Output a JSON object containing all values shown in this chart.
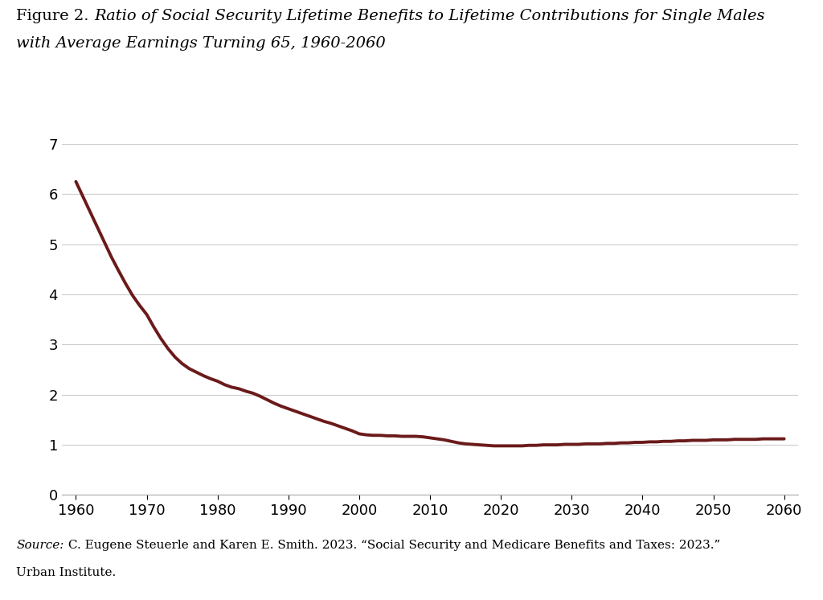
{
  "title_prefix": "Figure 2. ",
  "title_italic1": "Ratio of Social Security Lifetime Benefits to Lifetime Contributions for Single Males",
  "title_italic2": "with Average Earnings Turning 65, 1960-2060",
  "source_label": "Source:",
  "source_rest": " C. Eugene Steuerle and Karen E. Smith. 2023. “Social Security and Medicare Benefits and Taxes: 2023.”",
  "source_line2": "Urban Institute.",
  "line_color": "#6B1A1A",
  "line_width": 2.8,
  "background_color": "#FFFFFF",
  "years": [
    1960,
    1961,
    1962,
    1963,
    1964,
    1965,
    1966,
    1967,
    1968,
    1969,
    1970,
    1971,
    1972,
    1973,
    1974,
    1975,
    1976,
    1977,
    1978,
    1979,
    1980,
    1981,
    1982,
    1983,
    1984,
    1985,
    1986,
    1987,
    1988,
    1989,
    1990,
    1991,
    1992,
    1993,
    1994,
    1995,
    1996,
    1997,
    1998,
    1999,
    2000,
    2001,
    2002,
    2003,
    2004,
    2005,
    2006,
    2007,
    2008,
    2009,
    2010,
    2011,
    2012,
    2013,
    2014,
    2015,
    2016,
    2017,
    2018,
    2019,
    2020,
    2021,
    2022,
    2023,
    2024,
    2025,
    2026,
    2027,
    2028,
    2029,
    2030,
    2031,
    2032,
    2033,
    2034,
    2035,
    2036,
    2037,
    2038,
    2039,
    2040,
    2041,
    2042,
    2043,
    2044,
    2045,
    2046,
    2047,
    2048,
    2049,
    2050,
    2051,
    2052,
    2053,
    2054,
    2055,
    2056,
    2057,
    2058,
    2059,
    2060
  ],
  "values": [
    6.25,
    5.95,
    5.65,
    5.35,
    5.05,
    4.75,
    4.48,
    4.22,
    3.98,
    3.78,
    3.6,
    3.35,
    3.12,
    2.92,
    2.75,
    2.62,
    2.52,
    2.45,
    2.38,
    2.32,
    2.27,
    2.2,
    2.15,
    2.12,
    2.07,
    2.03,
    1.97,
    1.9,
    1.83,
    1.77,
    1.72,
    1.67,
    1.62,
    1.57,
    1.52,
    1.47,
    1.43,
    1.38,
    1.33,
    1.28,
    1.22,
    1.2,
    1.19,
    1.19,
    1.18,
    1.18,
    1.17,
    1.17,
    1.17,
    1.16,
    1.14,
    1.12,
    1.1,
    1.07,
    1.04,
    1.02,
    1.01,
    1.0,
    0.99,
    0.98,
    0.98,
    0.98,
    0.98,
    0.98,
    0.99,
    0.99,
    1.0,
    1.0,
    1.0,
    1.01,
    1.01,
    1.01,
    1.02,
    1.02,
    1.02,
    1.03,
    1.03,
    1.04,
    1.04,
    1.05,
    1.05,
    1.06,
    1.06,
    1.07,
    1.07,
    1.08,
    1.08,
    1.09,
    1.09,
    1.09,
    1.1,
    1.1,
    1.1,
    1.11,
    1.11,
    1.11,
    1.11,
    1.12,
    1.12,
    1.12,
    1.12
  ],
  "xlim": [
    1958,
    2062
  ],
  "ylim": [
    0,
    7
  ],
  "yticks": [
    0,
    1,
    2,
    3,
    4,
    5,
    6,
    7
  ],
  "xticks": [
    1960,
    1970,
    1980,
    1990,
    2000,
    2010,
    2020,
    2030,
    2040,
    2050,
    2060
  ],
  "grid_color": "#CCCCCC",
  "tick_label_fontsize": 13,
  "title_fontsize": 14,
  "source_fontsize": 11
}
